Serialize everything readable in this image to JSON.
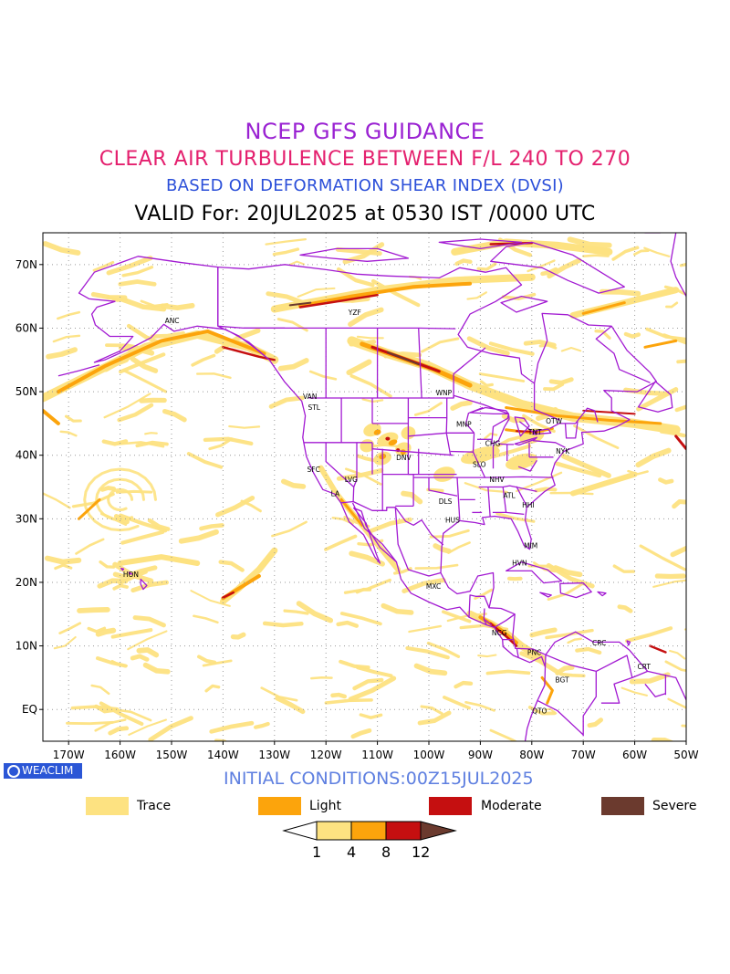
{
  "header": {
    "line1": "NCEP GFS GUIDANCE",
    "line2": "CLEAR AIR TURBULENCE BETWEEN F/L 240 TO 270",
    "line3": "BASED ON DEFORMATION SHEAR INDEX (DVSI)",
    "line4": "VALID For: 20JUL2025 at 0530 IST /0000 UTC"
  },
  "map": {
    "lat_labels": [
      "70N",
      "60N",
      "50N",
      "40N",
      "30N",
      "20N",
      "10N",
      "EQ"
    ],
    "lon_labels": [
      "170W",
      "160W",
      "150W",
      "140W",
      "130W",
      "120W",
      "110W",
      "100W",
      "90W",
      "80W",
      "70W",
      "60W",
      "50W"
    ],
    "stations": [
      {
        "code": "ANC",
        "lat": 61.2,
        "lon": -149.9
      },
      {
        "code": "YZF",
        "lat": 62.5,
        "lon": -114.4
      },
      {
        "code": "WNP",
        "lat": 49.9,
        "lon": -97.1
      },
      {
        "code": "VAN",
        "lat": 49.3,
        "lon": -123.1
      },
      {
        "code": "STL",
        "lat": 47.6,
        "lon": -122.3
      },
      {
        "code": "MNP",
        "lat": 44.9,
        "lon": -93.2
      },
      {
        "code": "TNT",
        "lat": 43.7,
        "lon": -79.4
      },
      {
        "code": "OTW",
        "lat": 45.4,
        "lon": -75.7
      },
      {
        "code": "CHG",
        "lat": 41.9,
        "lon": -87.6
      },
      {
        "code": "NYK",
        "lat": 40.7,
        "lon": -74.0
      },
      {
        "code": "DNV",
        "lat": 39.7,
        "lon": -104.9
      },
      {
        "code": "SFC",
        "lat": 37.8,
        "lon": -122.4
      },
      {
        "code": "SLO",
        "lat": 38.6,
        "lon": -90.2
      },
      {
        "code": "LVG",
        "lat": 36.2,
        "lon": -115.1
      },
      {
        "code": "NHV",
        "lat": 36.2,
        "lon": -86.8
      },
      {
        "code": "LA",
        "lat": 34.0,
        "lon": -118.2
      },
      {
        "code": "ATL",
        "lat": 33.7,
        "lon": -84.4
      },
      {
        "code": "DLS",
        "lat": 32.8,
        "lon": -96.8
      },
      {
        "code": "HHI",
        "lat": 32.2,
        "lon": -80.7
      },
      {
        "code": "HUS",
        "lat": 29.8,
        "lon": -95.4
      },
      {
        "code": "MIM",
        "lat": 25.8,
        "lon": -80.2
      },
      {
        "code": "HVN",
        "lat": 23.1,
        "lon": -82.4
      },
      {
        "code": "HON",
        "lat": 21.3,
        "lon": -157.9
      },
      {
        "code": "MXC",
        "lat": 19.4,
        "lon": -99.1
      },
      {
        "code": "NCG",
        "lat": 12.1,
        "lon": -86.3
      },
      {
        "code": "CRC",
        "lat": 10.5,
        "lon": -66.9
      },
      {
        "code": "PNC",
        "lat": 9.0,
        "lon": -79.5
      },
      {
        "code": "CRT",
        "lat": 6.8,
        "lon": -58.2
      },
      {
        "code": "BGT",
        "lat": 4.7,
        "lon": -74.1
      },
      {
        "code": "QTO",
        "lat": -0.2,
        "lon": -78.5
      }
    ]
  },
  "initial_conditions": "INITIAL CONDITIONS:00Z15JUL2025",
  "logo_text": "WEACLIM",
  "legend": {
    "items": [
      {
        "label": "Trace",
        "color": "#fde281"
      },
      {
        "label": "Light",
        "color": "#fca40c"
      },
      {
        "label": "Moderate",
        "color": "#c50f10"
      },
      {
        "label": "Severe",
        "color": "#6b3a2e"
      }
    ],
    "scale_ticks": [
      "1",
      "4",
      "8",
      "12"
    ]
  },
  "colors": {
    "coastline": "#a21ad2",
    "trace": "#fde281",
    "light": "#fca40c",
    "moderate": "#c50f10",
    "severe": "#6b3a2e"
  }
}
